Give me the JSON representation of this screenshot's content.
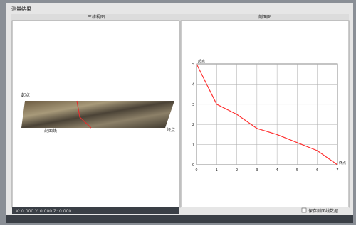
{
  "window": {
    "title": "测量结果",
    "status": "X: 0.000  Y: 0.000  Z: 0.000",
    "checkbox": "保存剖面线数据"
  },
  "left_panel": {
    "title": "三维视图",
    "labels": [
      "起点",
      "剖面线",
      "终点"
    ]
  },
  "right_panel": {
    "title": "剖面图"
  },
  "chart_data": {
    "type": "line",
    "start_label": "起点",
    "end_label": "终点",
    "x": [
      0,
      1,
      2,
      3,
      4,
      5,
      6,
      7
    ],
    "values": [
      5,
      3,
      2.5,
      1.8,
      1.5,
      1.1,
      0.7,
      0
    ],
    "color": "#ff3030",
    "xlim": [
      0,
      7
    ],
    "xticks": [
      0,
      1,
      2,
      3,
      4,
      5,
      6,
      7
    ],
    "ylim": [
      0,
      5
    ],
    "yticks": [
      0,
      1,
      2,
      3,
      4,
      5
    ],
    "grid": true
  }
}
